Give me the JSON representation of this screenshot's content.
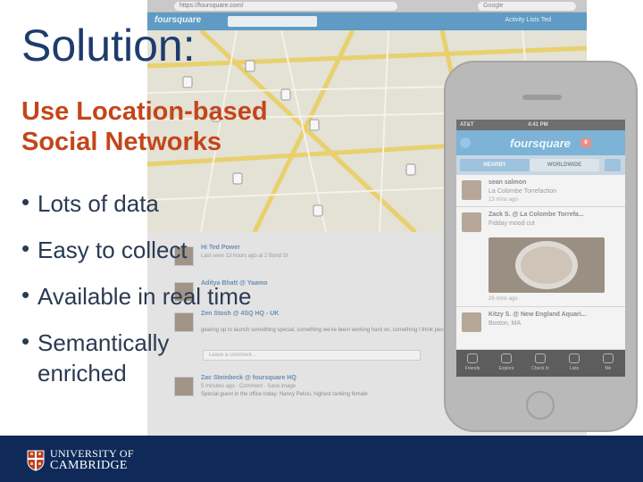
{
  "slide": {
    "title": "Solution:",
    "subtitle_lines": [
      "Use Location-based",
      "Social Networks"
    ],
    "bullets": [
      "Lots of data",
      "Easy to collect",
      "Available in real time",
      "Semantically\nenriched"
    ],
    "bullet_marker": "•"
  },
  "background_web": {
    "url": "https://foursquare.com/",
    "search_placeholder": "Google",
    "logo": "foursquare",
    "nav": "Activity   Lists   Ted",
    "feed": [
      {
        "name": "Hi Ted Power",
        "meta": "Last seen 13 hours ago at 2 Bond St",
        "text": ""
      },
      {
        "name": "Aditya Bhatt @ Yaamo",
        "meta": "",
        "text": ""
      },
      {
        "name": "Zen Stosh @ 4SQ HQ - UK",
        "meta": "",
        "text": "gearing up to launch something special, something we've been working hard on, something I think people will love"
      },
      {
        "name": "Zac Steinbeck @ foursquare HQ",
        "meta": "5 minutes ago · Comment · Save image",
        "text": "Special guest in the office today: Nancy Pelosi, highest ranking female"
      }
    ],
    "comment_placeholder": "Leave a comment..."
  },
  "phone": {
    "carrier": "AT&T",
    "time": "4:41 PM",
    "logo": "foursquare",
    "badge": "6",
    "tabs": [
      "NEARBY",
      "WORLDWIDE"
    ],
    "checkins": [
      {
        "name": "sean salmon",
        "location": "La Colombe Torrefaction",
        "time": "13 mins ago"
      },
      {
        "name": "Zack S. @ La Colombe Torrefa...",
        "location": "Fidday mood cut",
        "time": "26 mins ago"
      },
      {
        "name": "Kitzy S. @ New England Aquari...",
        "location": "Boston, MA",
        "time": ""
      }
    ],
    "tabbar": [
      "Friends",
      "Explore",
      "Check In",
      "Lists",
      "Me"
    ]
  },
  "footer": {
    "line1": "UNIVERSITY OF",
    "line2": "CAMBRIDGE"
  },
  "colors": {
    "title": "#1e3c6c",
    "subtitle": "#c3461a",
    "bullets": "#2a3a52",
    "footer": "#0f2a58"
  }
}
